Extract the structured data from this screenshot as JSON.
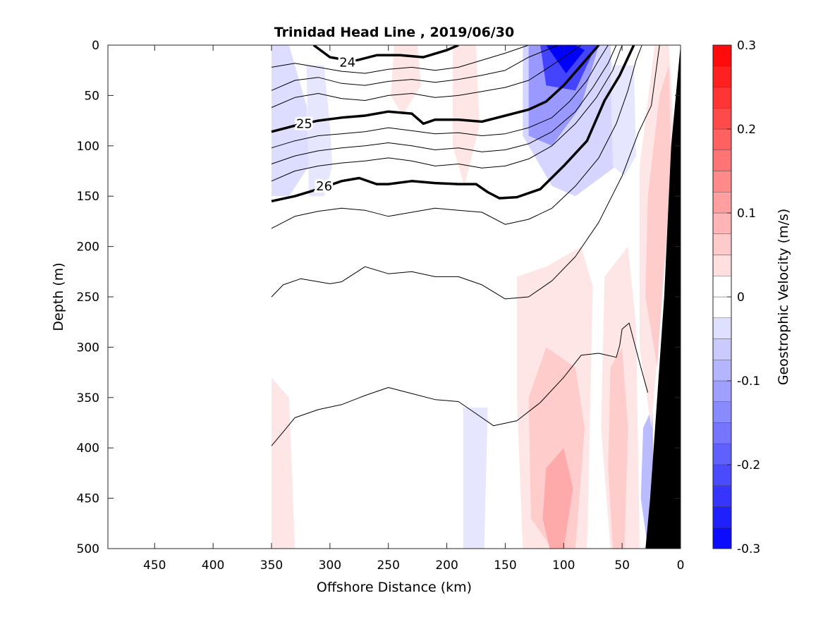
{
  "chart_data": {
    "type": "contour",
    "title": "Trinidad Head Line , 2019/06/30",
    "xlabel": "Offshore Distance (km)",
    "ylabel": "Depth (m)",
    "xlim": [
      490,
      0
    ],
    "ylim": [
      500,
      0
    ],
    "x_reversed": true,
    "y_reversed": true,
    "xticks": [
      450,
      400,
      350,
      300,
      250,
      200,
      150,
      100,
      50,
      0
    ],
    "yticks": [
      0,
      50,
      100,
      150,
      200,
      250,
      300,
      350,
      400,
      450,
      500
    ],
    "colorbar": {
      "label": "Geostrophic Velocity (m/s)",
      "range": [
        -0.3,
        0.3
      ],
      "ticks": [
        -0.3,
        -0.2,
        -0.1,
        0,
        0.1,
        0.2,
        0.3
      ],
      "tick_labels": [
        "-0.3",
        "-0.2",
        "-0.1",
        "0",
        "0.1",
        "0.2",
        "0.3"
      ],
      "levels": 24,
      "negative_color": "#0000ff",
      "positive_color": "#ff0000",
      "zero_color": "#ffffff"
    },
    "velocity_patches": [
      {
        "v": -0.04,
        "x": [
          350,
          335,
          320,
          318,
          335,
          350
        ],
        "y": [
          0,
          0,
          60,
          120,
          150,
          150
        ]
      },
      {
        "v": -0.03,
        "x": [
          320,
          305,
          300,
          298,
          305,
          318
        ],
        "y": [
          20,
          20,
          80,
          120,
          150,
          150
        ]
      },
      {
        "v": -0.05,
        "x": [
          135,
          120,
          85,
          60,
          55,
          90,
          110,
          135
        ],
        "y": [
          0,
          0,
          0,
          0,
          120,
          150,
          140,
          90
        ]
      },
      {
        "v": -0.12,
        "x": [
          130,
          120,
          85,
          70,
          85,
          110,
          130
        ],
        "y": [
          0,
          0,
          0,
          0,
          60,
          100,
          90
        ]
      },
      {
        "v": -0.22,
        "x": [
          120,
          85,
          72,
          90,
          115
        ],
        "y": [
          0,
          0,
          0,
          45,
          40
        ]
      },
      {
        "v": -0.3,
        "x": [
          115,
          90,
          82,
          98
        ],
        "y": [
          0,
          0,
          5,
          28
        ]
      },
      {
        "v": -0.03,
        "x": [
          60,
          40,
          38,
          48,
          58
        ],
        "y": [
          20,
          20,
          110,
          130,
          120
        ]
      },
      {
        "v": -0.03,
        "x": [
          186,
          165,
          168,
          186
        ],
        "y": [
          360,
          360,
          500,
          500
        ]
      },
      {
        "v": -0.08,
        "x": [
          32,
          24,
          22,
          28,
          34
        ],
        "y": [
          380,
          360,
          500,
          500,
          450
        ]
      },
      {
        "v": 0.03,
        "x": [
          350,
          335,
          330,
          350
        ],
        "y": [
          330,
          350,
          500,
          500
        ]
      },
      {
        "v": 0.03,
        "x": [
          245,
          225,
          222,
          238,
          248
        ],
        "y": [
          0,
          0,
          40,
          70,
          50
        ]
      },
      {
        "v": 0.03,
        "x": [
          195,
          175,
          172,
          185,
          195
        ],
        "y": [
          0,
          0,
          80,
          140,
          100
        ]
      },
      {
        "v": 0.03,
        "x": [
          140,
          115,
          85,
          75,
          80,
          100,
          135,
          140
        ],
        "y": [
          230,
          220,
          200,
          240,
          500,
          500,
          500,
          350
        ]
      },
      {
        "v": 0.06,
        "x": [
          130,
          115,
          90,
          82,
          90,
          110,
          128
        ],
        "y": [
          350,
          300,
          320,
          380,
          500,
          500,
          470
        ]
      },
      {
        "v": 0.1,
        "x": [
          115,
          100,
          92,
          100,
          112,
          118
        ],
        "y": [
          420,
          400,
          440,
          500,
          500,
          470
        ]
      },
      {
        "v": 0.03,
        "x": [
          65,
          45,
          38,
          35,
          60,
          68
        ],
        "y": [
          230,
          200,
          280,
          500,
          500,
          380
        ]
      },
      {
        "v": 0.06,
        "x": [
          60,
          50,
          45,
          48,
          58,
          62
        ],
        "y": [
          320,
          300,
          380,
          500,
          500,
          420
        ]
      },
      {
        "v": 0.03,
        "x": [
          35,
          22,
          10,
          5,
          25,
          35
        ],
        "y": [
          120,
          0,
          0,
          100,
          380,
          300
        ]
      },
      {
        "v": 0.06,
        "x": [
          28,
          18,
          10,
          8,
          20,
          30
        ],
        "y": [
          150,
          50,
          20,
          120,
          320,
          250
        ]
      }
    ],
    "isopycnals": [
      {
        "level": 24,
        "labeled": true,
        "label_at": [
          285,
          17
        ],
        "x": [
          314,
          300,
          280,
          260,
          240,
          220,
          200,
          190
        ],
        "y": [
          0,
          12,
          16,
          10,
          10,
          12,
          5,
          0
        ]
      },
      {
        "level": 24.25,
        "labeled": false,
        "x": [
          350,
          330,
          310,
          290,
          270,
          250,
          230,
          210,
          190,
          170,
          150,
          135,
          130
        ],
        "y": [
          22,
          18,
          22,
          26,
          28,
          24,
          22,
          25,
          22,
          15,
          8,
          2,
          0
        ]
      },
      {
        "level": 24.5,
        "labeled": false,
        "x": [
          350,
          330,
          310,
          290,
          270,
          250,
          230,
          210,
          190,
          170,
          150,
          130,
          115,
          105
        ],
        "y": [
          45,
          35,
          32,
          38,
          40,
          36,
          34,
          37,
          34,
          30,
          25,
          12,
          5,
          0
        ]
      },
      {
        "level": 24.75,
        "labeled": false,
        "x": [
          350,
          330,
          310,
          290,
          270,
          250,
          230,
          210,
          190,
          170,
          150,
          130,
          110,
          95,
          85
        ],
        "y": [
          62,
          52,
          48,
          53,
          55,
          50,
          48,
          52,
          50,
          46,
          42,
          35,
          20,
          8,
          0
        ]
      },
      {
        "level": 25,
        "labeled": true,
        "label_at": [
          322,
          78
        ],
        "x": [
          350,
          330,
          310,
          290,
          270,
          250,
          230,
          220,
          210,
          190,
          170,
          150,
          130,
          115,
          100,
          85,
          70
        ],
        "y": [
          86,
          80,
          75,
          72,
          70,
          66,
          68,
          78,
          74,
          74,
          76,
          70,
          64,
          56,
          40,
          20,
          0
        ]
      },
      {
        "level": 25.25,
        "labeled": false,
        "x": [
          350,
          330,
          310,
          290,
          270,
          250,
          230,
          210,
          190,
          170,
          150,
          130,
          110,
          95,
          80,
          70,
          62
        ],
        "y": [
          102,
          95,
          90,
          88,
          86,
          82,
          85,
          88,
          87,
          90,
          88,
          82,
          72,
          56,
          35,
          15,
          0
        ]
      },
      {
        "level": 25.5,
        "labeled": false,
        "x": [
          350,
          330,
          310,
          290,
          270,
          250,
          230,
          210,
          190,
          170,
          150,
          130,
          110,
          90,
          75,
          62,
          55
        ],
        "y": [
          118,
          110,
          105,
          102,
          100,
          97,
          100,
          104,
          102,
          106,
          104,
          98,
          86,
          66,
          42,
          18,
          0
        ]
      },
      {
        "level": 25.75,
        "labeled": false,
        "x": [
          350,
          330,
          310,
          290,
          270,
          250,
          230,
          210,
          190,
          170,
          150,
          130,
          110,
          90,
          72,
          58,
          50
        ],
        "y": [
          135,
          125,
          120,
          117,
          115,
          112,
          115,
          120,
          118,
          122,
          120,
          113,
          100,
          78,
          52,
          25,
          0
        ]
      },
      {
        "level": 26,
        "labeled": true,
        "label_at": [
          305,
          140
        ],
        "x": [
          350,
          330,
          310,
          290,
          275,
          260,
          250,
          230,
          210,
          190,
          175,
          165,
          155,
          140,
          120,
          100,
          80,
          65,
          52,
          40
        ],
        "y": [
          155,
          150,
          143,
          135,
          132,
          138,
          138,
          135,
          137,
          138,
          138,
          146,
          152,
          151,
          143,
          120,
          95,
          55,
          30,
          0
        ]
      },
      {
        "level": 26.25,
        "labeled": false,
        "x": [
          350,
          330,
          310,
          290,
          270,
          250,
          230,
          210,
          190,
          170,
          150,
          130,
          110,
          90,
          70,
          55,
          45,
          38,
          33
        ],
        "y": [
          182,
          170,
          165,
          162,
          164,
          170,
          166,
          162,
          164,
          166,
          178,
          173,
          162,
          140,
          112,
          78,
          45,
          15,
          0
        ]
      },
      {
        "level": 26.5,
        "labeled": false,
        "x": [
          350,
          340,
          325,
          300,
          290,
          270,
          250,
          230,
          210,
          190,
          170,
          150,
          130,
          110,
          90,
          70,
          50,
          36,
          25,
          18
        ],
        "y": [
          250,
          238,
          232,
          237,
          235,
          220,
          227,
          225,
          230,
          230,
          238,
          252,
          250,
          234,
          210,
          176,
          130,
          87,
          60,
          0
        ]
      },
      {
        "level": 26.75,
        "labeled": false,
        "x": [
          350,
          340,
          330,
          310,
          290,
          270,
          250,
          230,
          210,
          190,
          175,
          160,
          140,
          120,
          100,
          85,
          70,
          55,
          52,
          50,
          44,
          34,
          28
        ],
        "y": [
          398,
          384,
          370,
          362,
          357,
          348,
          340,
          346,
          352,
          354,
          366,
          378,
          373,
          355,
          330,
          308,
          306,
          310,
          298,
          282,
          276,
          320,
          345
        ]
      }
    ],
    "bathymetry": {
      "x": [
        0,
        8,
        14,
        20,
        26,
        30
      ],
      "y": [
        0,
        100,
        250,
        350,
        450,
        500
      ],
      "color": "#000000"
    }
  }
}
